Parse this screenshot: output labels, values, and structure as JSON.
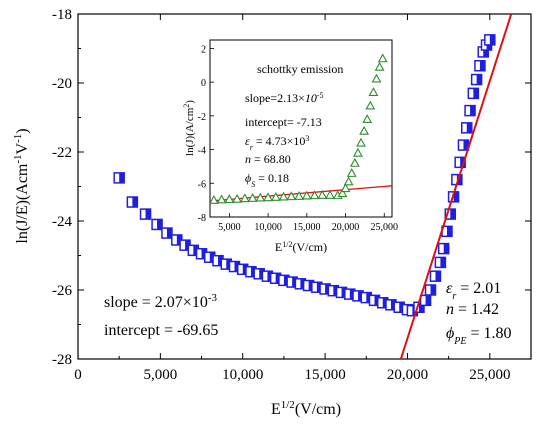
{
  "chart_data": [
    {
      "type": "scatter",
      "xlabel": "E^{1/2}(V/cm)",
      "xlabel_main": "E",
      "xlabel_sup": "1/2",
      "xlabel_tail": "(V/cm)",
      "ylabel": "ln(J/E)(Acm^{-1}V^{-1})",
      "ylabel_a": "ln(J/E)(Acm",
      "ylabel_sup1": "-1",
      "ylabel_b": "V",
      "ylabel_sup2": "-1",
      "ylabel_c": ")",
      "xlim": [
        0,
        27500
      ],
      "ylim": [
        -28,
        -18
      ],
      "xticks": [
        0,
        5000,
        10000,
        15000,
        20000,
        25000
      ],
      "xtick_labels": [
        "0",
        "5,000",
        "10,000",
        "15,000",
        "20,000",
        "25,000"
      ],
      "yticks": [
        -28,
        -26,
        -24,
        -22,
        -20,
        -18
      ],
      "ytick_labels": [
        "-28",
        "-26",
        "-24",
        "-22",
        "-20",
        "-18"
      ],
      "grid": false,
      "series": [
        {
          "marker": "half-filled square",
          "color": "#1f1fe0",
          "x": [
            2500,
            3300,
            4100,
            4800,
            5400,
            6000,
            6500,
            7000,
            7500,
            8000,
            8500,
            9000,
            9500,
            10000,
            10500,
            11000,
            11500,
            12000,
            12500,
            13000,
            13500,
            14000,
            14500,
            15000,
            15500,
            16000,
            16500,
            17000,
            17500,
            18000,
            18500,
            19000,
            19500,
            20000,
            20300,
            20700,
            21100,
            21400,
            21700,
            22000,
            22200,
            22400,
            22600,
            22800,
            23000,
            23200,
            23400,
            23600,
            23800,
            24000,
            24200,
            24400,
            24600,
            24800,
            25000
          ],
          "y": [
            -22.75,
            -23.45,
            -23.8,
            -24.1,
            -24.35,
            -24.55,
            -24.7,
            -24.85,
            -24.95,
            -25.05,
            -25.15,
            -25.25,
            -25.32,
            -25.4,
            -25.47,
            -25.53,
            -25.6,
            -25.66,
            -25.72,
            -25.77,
            -25.82,
            -25.87,
            -25.92,
            -25.97,
            -26.02,
            -26.07,
            -26.12,
            -26.17,
            -26.22,
            -26.3,
            -26.37,
            -26.43,
            -26.5,
            -26.57,
            -26.6,
            -26.5,
            -26.3,
            -26.0,
            -25.6,
            -25.2,
            -24.8,
            -24.3,
            -23.8,
            -23.3,
            -22.8,
            -22.3,
            -21.8,
            -21.3,
            -20.8,
            -20.3,
            -19.9,
            -19.5,
            -19.1,
            -18.9,
            -18.75
          ]
        }
      ],
      "fit_lines": [
        {
          "color": "#e01010",
          "x": [
            19600,
            26300
          ],
          "y": [
            -28,
            -18
          ]
        }
      ],
      "annotations": {
        "slope": "slope = 2.07×10",
        "slope_exp": "-3",
        "intercept": "intercept = -69.65",
        "eps_val": " = 2.01",
        "n_val": " = 1.42",
        "phi_sub": "PE",
        "phi_val": " = 1.80"
      }
    },
    {
      "type": "scatter",
      "title": "schottky emission",
      "xlabel_main": "E",
      "xlabel_sup": "1/2",
      "xlabel_tail": "(V/cm)",
      "ylabel": "ln(J)(A/cm^2)",
      "ylabel_a": "ln(J)(A/cm",
      "ylabel_sup": "2",
      "ylabel_c": ")",
      "xlim": [
        2500,
        26000
      ],
      "ylim": [
        -8,
        2.5
      ],
      "xticks": [
        5000,
        10000,
        15000,
        20000,
        25000
      ],
      "xtick_labels": [
        "5,000",
        "10,000",
        "15,000",
        "20,000",
        "25,000"
      ],
      "yticks": [
        -8,
        -6,
        -4,
        -2,
        0,
        2
      ],
      "ytick_labels": [
        "-8",
        "-6",
        "-4",
        "-2",
        "0",
        "2"
      ],
      "series": [
        {
          "marker": "triangle",
          "color": "#2e8b2e",
          "x": [
            3000,
            4000,
            5000,
            6000,
            7000,
            8000,
            9000,
            10000,
            11000,
            12000,
            13000,
            14000,
            15000,
            16000,
            17000,
            18000,
            19000,
            19600,
            20000,
            20400,
            20800,
            21200,
            21600,
            22000,
            22400,
            22800,
            23200,
            23600,
            24000,
            24400,
            24800
          ],
          "y": [
            -7.0,
            -6.97,
            -6.95,
            -6.93,
            -6.9,
            -6.88,
            -6.86,
            -6.84,
            -6.82,
            -6.8,
            -6.78,
            -6.76,
            -6.74,
            -6.72,
            -6.7,
            -6.7,
            -6.72,
            -6.6,
            -6.3,
            -5.9,
            -5.4,
            -4.8,
            -4.2,
            -3.6,
            -2.9,
            -2.2,
            -1.4,
            -0.6,
            0.2,
            0.9,
            1.4
          ]
        }
      ],
      "fit_lines": [
        {
          "color": "#e01010",
          "x": [
            2500,
            26000
          ],
          "y": [
            -7.05,
            -6.15
          ]
        }
      ],
      "annotations": {
        "slope_a": "slope=2.13×",
        "slope_b": "10",
        "slope_exp": "-5",
        "intercept": "intercept= -7.13",
        "eps_val": " = 4.73×10",
        "eps_exp": "3",
        "n_val": " = 68.80",
        "phi_sub": "S",
        "phi_val": " = 0.18"
      }
    }
  ]
}
